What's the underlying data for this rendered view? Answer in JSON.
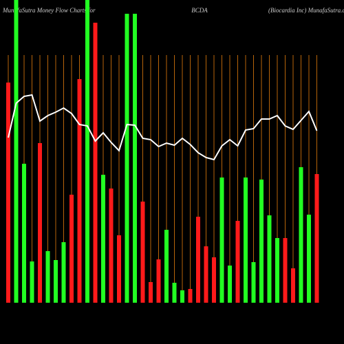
{
  "chart_data": {
    "type": "bar",
    "title_left": "MunafaSutra  Money Flow  Charts for",
    "title_center": "BCDA",
    "title_right": "(Biocardia  Inc) MunafaSutra.com",
    "ylim": [
      0,
      440
    ],
    "guide_color": "#b8650a",
    "bars": {
      "values": [
        320,
        440,
        202,
        60,
        232,
        75,
        62,
        88,
        157,
        325,
        440,
        407,
        186,
        166,
        98,
        420,
        420,
        147,
        30,
        63,
        106,
        29,
        18,
        20,
        125,
        82,
        66,
        182,
        54,
        119,
        182,
        59,
        179,
        127,
        94,
        94,
        50,
        197,
        128,
        187
      ],
      "colors": [
        "#ff1a1a",
        "#22ff22",
        "#22ff22",
        "#22ff22",
        "#ff1a1a",
        "#22ff22",
        "#22ff22",
        "#22ff22",
        "#ff1a1a",
        "#ff1a1a",
        "#22ff22",
        "#ff1a1a",
        "#22ff22",
        "#ff1a1a",
        "#ff1a1a",
        "#22ff22",
        "#22ff22",
        "#ff1a1a",
        "#ff1a1a",
        "#ff1a1a",
        "#22ff22",
        "#22ff22",
        "#22ff22",
        "#ff1a1a",
        "#ff1a1a",
        "#ff1a1a",
        "#ff1a1a",
        "#22ff22",
        "#22ff22",
        "#ff1a1a",
        "#22ff22",
        "#22ff22",
        "#22ff22",
        "#22ff22",
        "#22ff22",
        "#ff1a1a",
        "#ff1a1a",
        "#22ff22",
        "#22ff22",
        "#ff1a1a"
      ]
    },
    "line": {
      "color": "#ffffff",
      "values": [
        240,
        290,
        300,
        302,
        264,
        272,
        277,
        283,
        275,
        259,
        257,
        235,
        247,
        233,
        221,
        259,
        258,
        239,
        237,
        227,
        232,
        229,
        239,
        230,
        218,
        211,
        208,
        228,
        237,
        228,
        251,
        253,
        267,
        267,
        272,
        257,
        252,
        265,
        278,
        250
      ]
    }
  }
}
